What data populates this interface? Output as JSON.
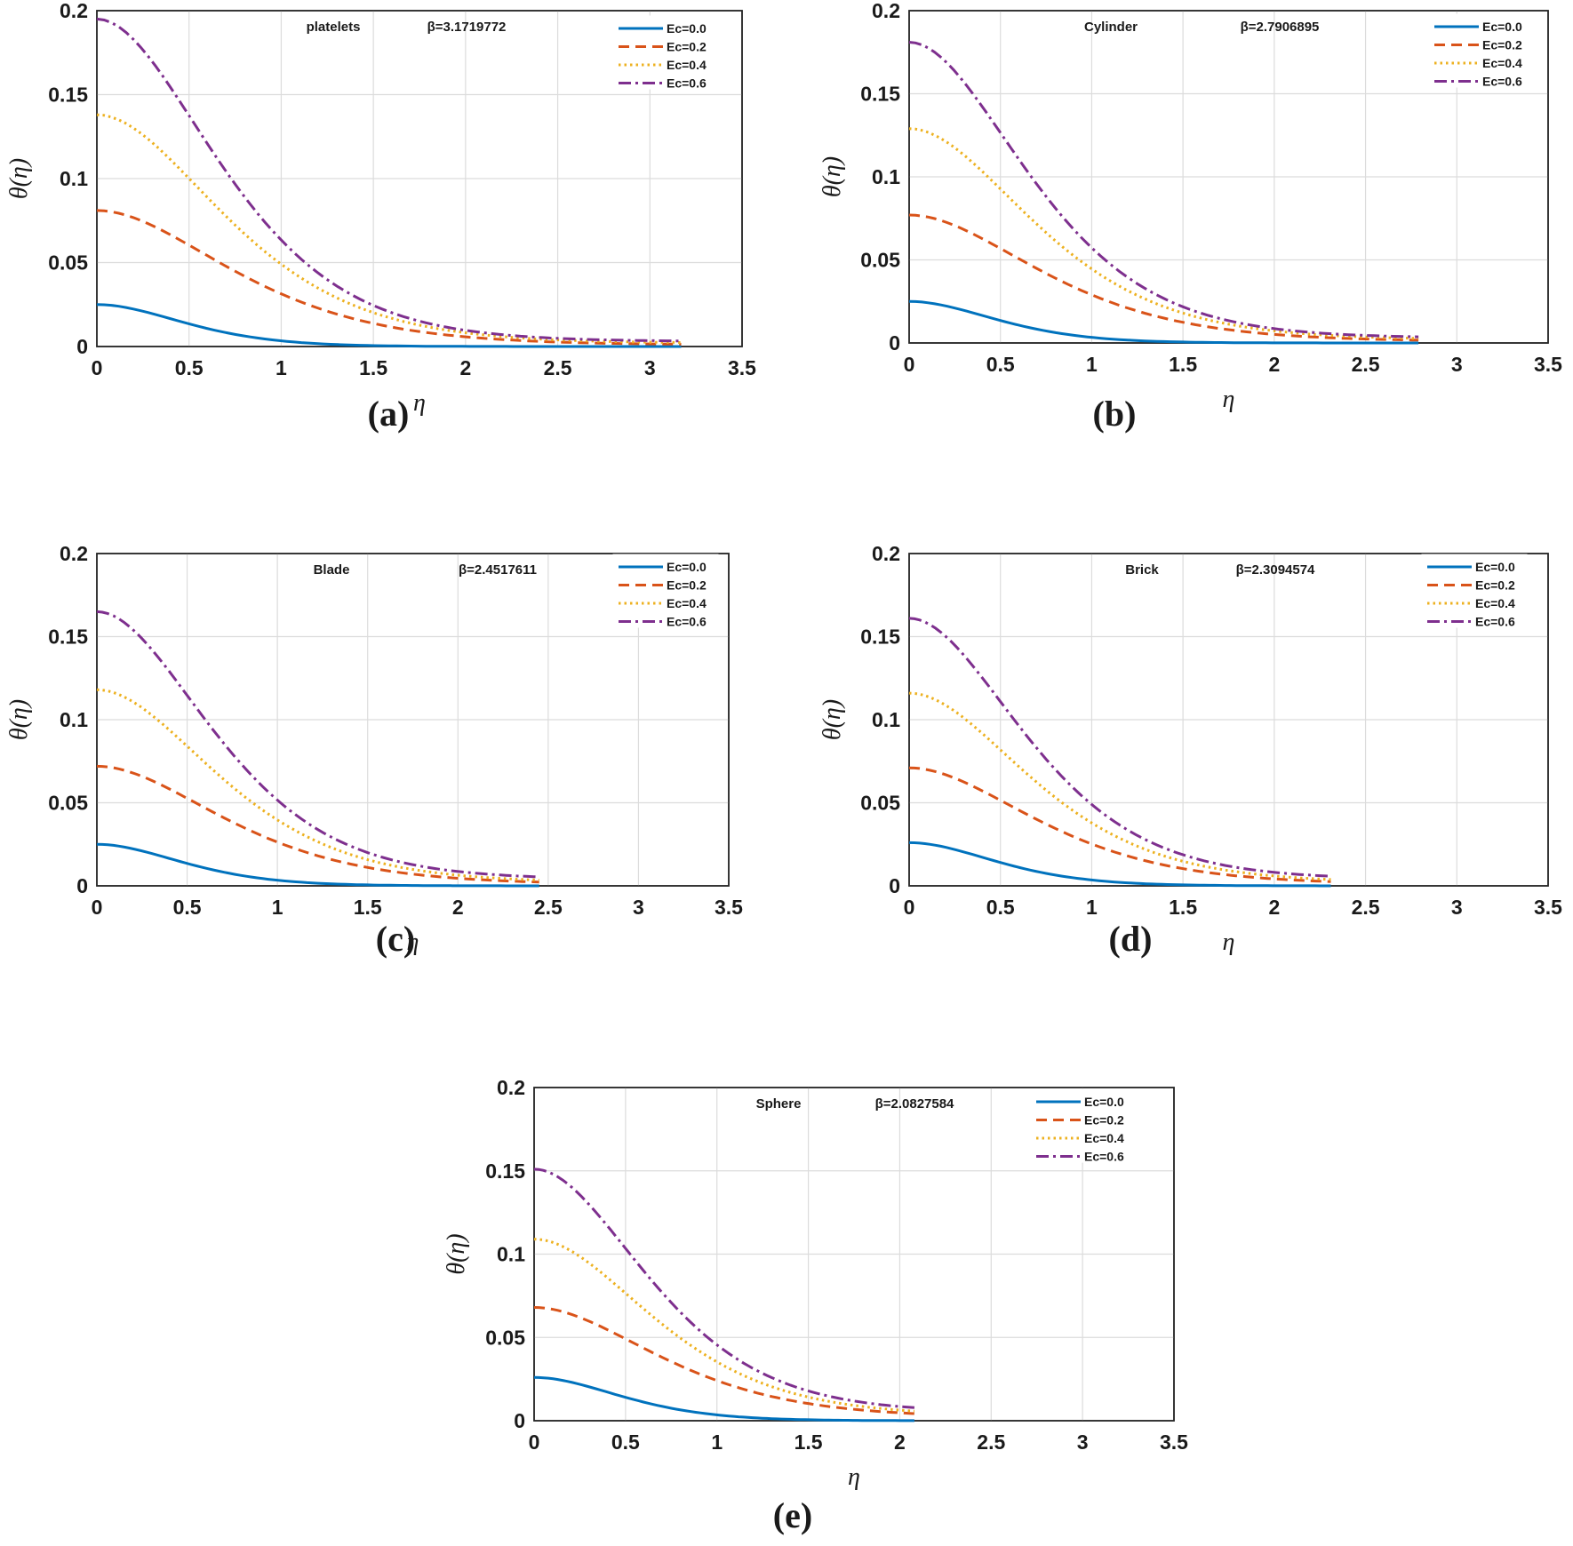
{
  "legend_labels": [
    "Ec=0.0",
    "Ec=0.2",
    "Ec=0.4",
    "Ec=0.6"
  ],
  "series_colors": [
    "#0072BD",
    "#D95319",
    "#EDB120",
    "#7E2F8E"
  ],
  "series_styles": [
    "solid",
    "dash",
    "dot",
    "dashdot"
  ],
  "chart_data": [
    {
      "type": "line",
      "caption": "(a)",
      "shape_label": "platelets",
      "beta_label": "β=3.1719772",
      "xlabel": "η",
      "ylabel": "θ(η)",
      "xlim": [
        0,
        3.5
      ],
      "ylim": [
        0,
        0.2
      ],
      "x_ticks": [
        "0",
        "0.5",
        "1",
        "1.5",
        "2",
        "2.5",
        "3",
        "3.5"
      ],
      "y_ticks": [
        "0",
        "0.05",
        "0.1",
        "0.15",
        "0.2"
      ],
      "x_end": 3.17,
      "series": [
        {
          "name": "Ec=0.0",
          "theta0": 0.025,
          "k": 3.2,
          "tail": 0.0
        },
        {
          "name": "Ec=0.2",
          "theta0": 0.081,
          "k": 1.55,
          "tail": 0.001
        },
        {
          "name": "Ec=0.4",
          "theta0": 0.138,
          "k": 1.7,
          "tail": 0.002
        },
        {
          "name": "Ec=0.6",
          "theta0": 0.195,
          "k": 1.85,
          "tail": 0.003
        }
      ]
    },
    {
      "type": "line",
      "caption": "(b)",
      "shape_label": "Cylinder",
      "beta_label": "β=2.7906895",
      "xlabel": "η",
      "ylabel": "θ(η)",
      "xlim": [
        0,
        3.5
      ],
      "ylim": [
        0,
        0.2
      ],
      "x_ticks": [
        "0",
        "0.5",
        "1",
        "1.5",
        "2",
        "2.5",
        "3",
        "3.5"
      ],
      "y_ticks": [
        "0",
        "0.05",
        "0.1",
        "0.15",
        "0.2"
      ],
      "x_end": 2.79,
      "series": [
        {
          "name": "Ec=0.0",
          "theta0": 0.025,
          "k": 3.2,
          "tail": 0.0
        },
        {
          "name": "Ec=0.2",
          "theta0": 0.077,
          "k": 1.6,
          "tail": 0.001
        },
        {
          "name": "Ec=0.4",
          "theta0": 0.129,
          "k": 1.75,
          "tail": 0.002
        },
        {
          "name": "Ec=0.6",
          "theta0": 0.181,
          "k": 1.9,
          "tail": 0.003
        }
      ]
    },
    {
      "type": "line",
      "caption": "(c)",
      "shape_label": "Blade",
      "beta_label": "β=2.4517611",
      "xlabel": "η",
      "ylabel": "θ(η)",
      "xlim": [
        0,
        3.5
      ],
      "ylim": [
        0,
        0.2
      ],
      "x_ticks": [
        "0",
        "0.5",
        "1",
        "1.5",
        "2",
        "2.5",
        "3",
        "3.5"
      ],
      "y_ticks": [
        "0",
        "0.05",
        "0.1",
        "0.15",
        "0.2"
      ],
      "x_end": 2.45,
      "series": [
        {
          "name": "Ec=0.0",
          "theta0": 0.025,
          "k": 3.2,
          "tail": 0.0
        },
        {
          "name": "Ec=0.2",
          "theta0": 0.072,
          "k": 1.65,
          "tail": 0.001
        },
        {
          "name": "Ec=0.4",
          "theta0": 0.118,
          "k": 1.8,
          "tail": 0.002
        },
        {
          "name": "Ec=0.6",
          "theta0": 0.165,
          "k": 1.95,
          "tail": 0.004
        }
      ]
    },
    {
      "type": "line",
      "caption": "(d)",
      "shape_label": "Brick",
      "beta_label": "β=2.3094574",
      "xlabel": "η",
      "ylabel": "θ(η)",
      "xlim": [
        0,
        3.5
      ],
      "ylim": [
        0,
        0.2
      ],
      "x_ticks": [
        "0",
        "0.5",
        "1",
        "1.5",
        "2",
        "2.5",
        "3",
        "3.5"
      ],
      "y_ticks": [
        "0",
        "0.05",
        "0.1",
        "0.15",
        "0.2"
      ],
      "x_end": 2.31,
      "series": [
        {
          "name": "Ec=0.0",
          "theta0": 0.026,
          "k": 3.2,
          "tail": 0.0
        },
        {
          "name": "Ec=0.2",
          "theta0": 0.071,
          "k": 1.7,
          "tail": 0.001
        },
        {
          "name": "Ec=0.4",
          "theta0": 0.116,
          "k": 1.85,
          "tail": 0.002
        },
        {
          "name": "Ec=0.6",
          "theta0": 0.161,
          "k": 2.0,
          "tail": 0.004
        }
      ]
    },
    {
      "type": "line",
      "caption": "(e)",
      "shape_label": "Sphere",
      "beta_label": "β=2.0827584",
      "xlabel": "η",
      "ylabel": "θ(η)",
      "xlim": [
        0,
        3.5
      ],
      "ylim": [
        0,
        0.2
      ],
      "x_ticks": [
        "0",
        "0.5",
        "1",
        "1.5",
        "2",
        "2.5",
        "3",
        "3.5"
      ],
      "y_ticks": [
        "0",
        "0.05",
        "0.1",
        "0.15",
        "0.2"
      ],
      "x_end": 2.08,
      "series": [
        {
          "name": "Ec=0.0",
          "theta0": 0.026,
          "k": 3.2,
          "tail": 0.0
        },
        {
          "name": "Ec=0.2",
          "theta0": 0.068,
          "k": 1.75,
          "tail": 0.002
        },
        {
          "name": "Ec=0.4",
          "theta0": 0.109,
          "k": 1.9,
          "tail": 0.003
        },
        {
          "name": "Ec=0.6",
          "theta0": 0.151,
          "k": 2.05,
          "tail": 0.005
        }
      ]
    }
  ]
}
